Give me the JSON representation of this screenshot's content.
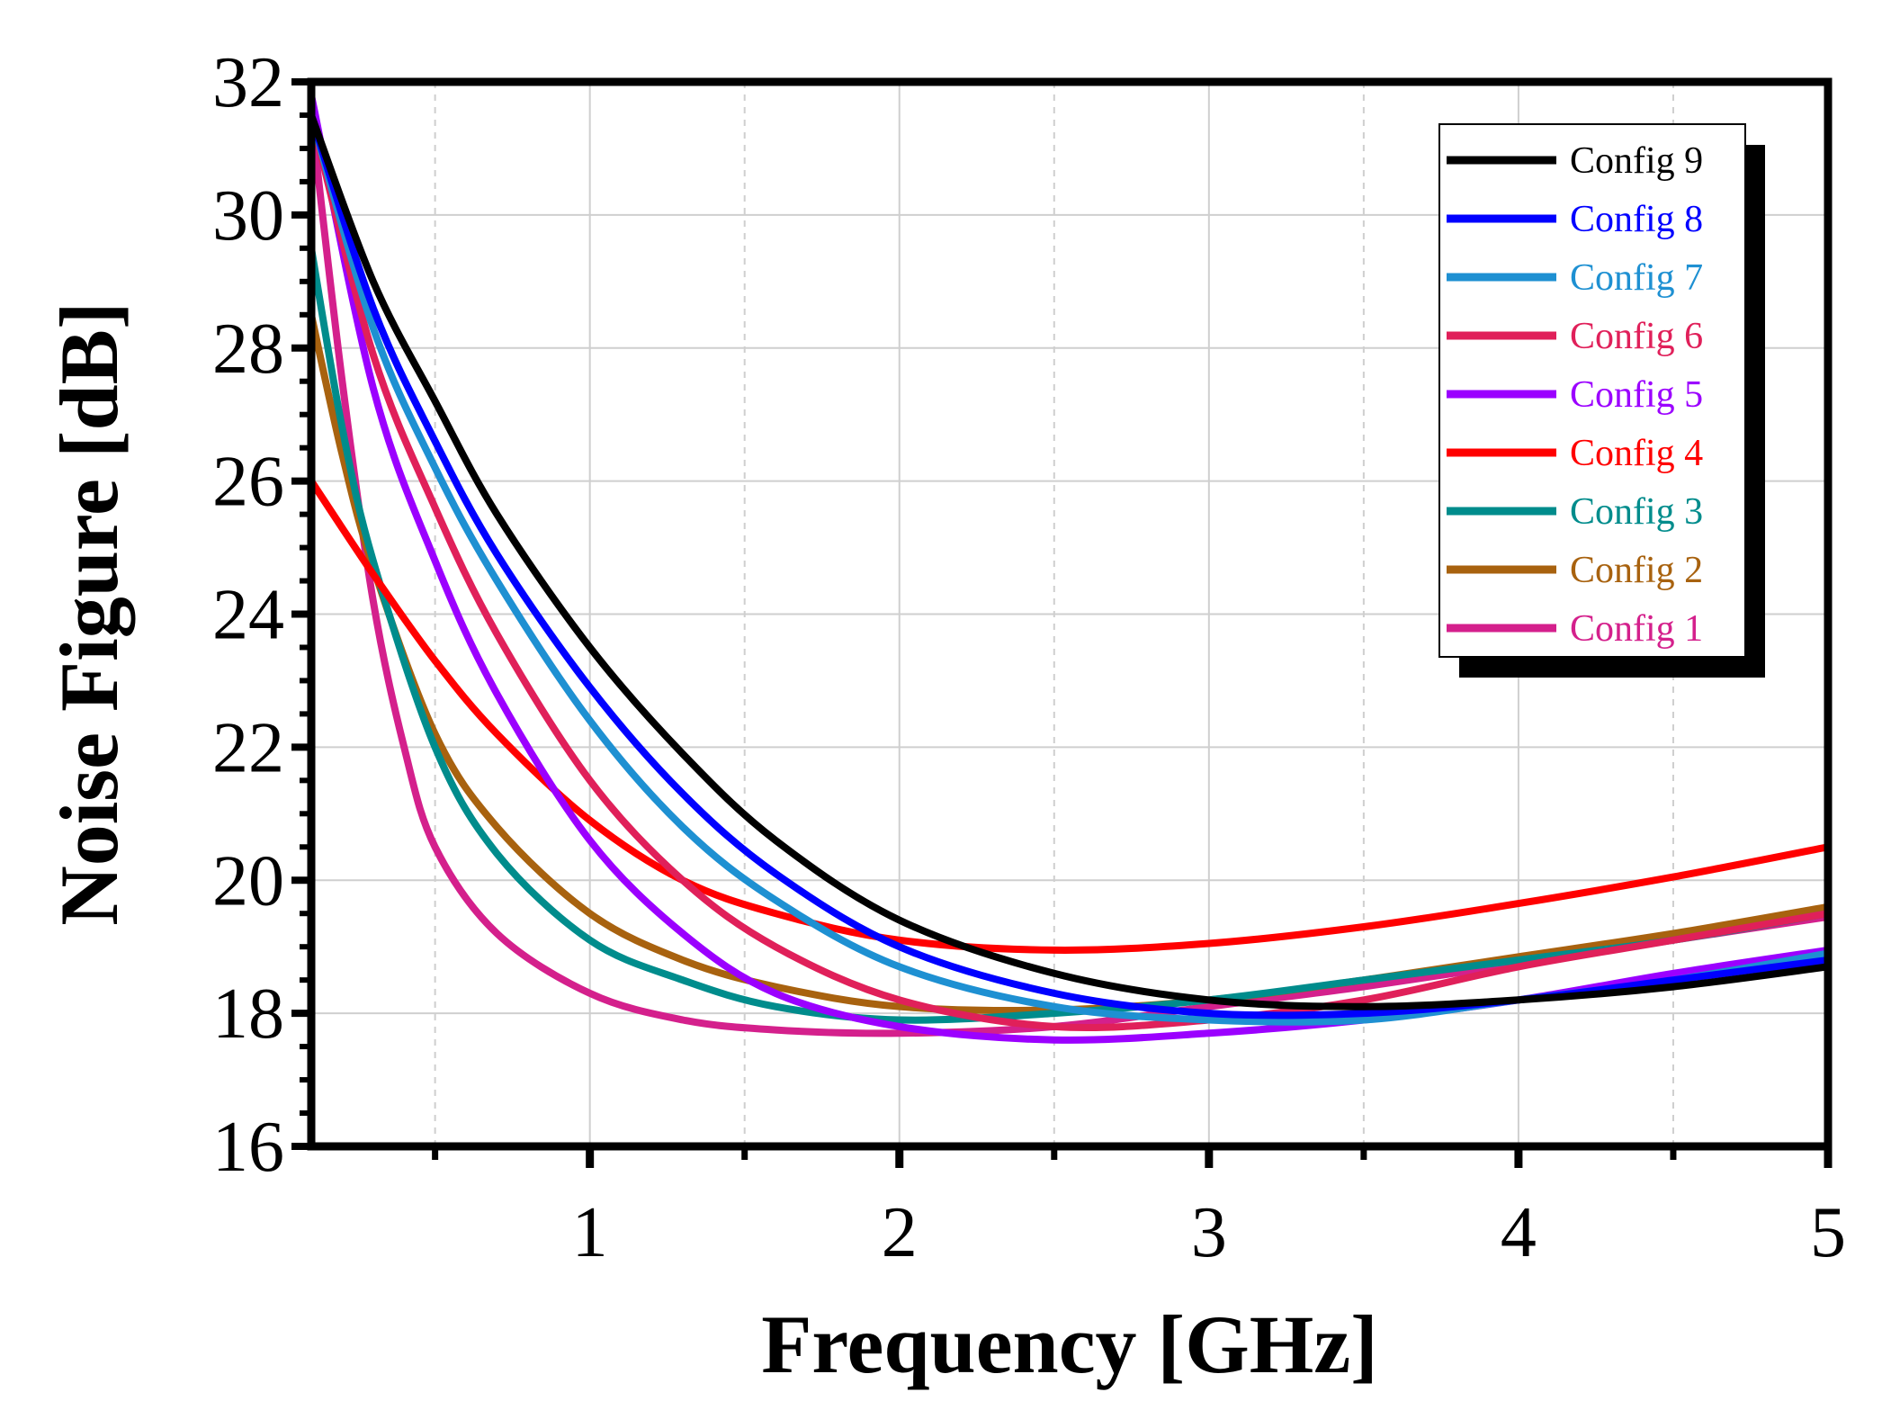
{
  "chart_data": {
    "type": "line",
    "title": "",
    "xlabel": "Frequency [GHz]",
    "ylabel": "Noise Figure [dB]",
    "xlim": [
      0.1,
      5
    ],
    "ylim": [
      16,
      32
    ],
    "x_ticks": [
      1,
      2,
      3,
      4,
      5
    ],
    "x_minor_ticks": [
      0.5,
      1.5,
      2.5,
      3.5,
      4.5
    ],
    "y_ticks": [
      16,
      18,
      20,
      22,
      24,
      26,
      28,
      30,
      32
    ],
    "grid": true,
    "legend_position": "top-right",
    "series": [
      {
        "name": "Config 9",
        "color": "#000000",
        "x": [
          0.1,
          0.3,
          0.5,
          0.7,
          1.0,
          1.3,
          1.6,
          2.0,
          2.5,
          3.0,
          3.5,
          4.0,
          4.5,
          5.0
        ],
        "y": [
          31.5,
          29.0,
          27.2,
          25.5,
          23.5,
          21.9,
          20.6,
          19.4,
          18.6,
          18.2,
          18.1,
          18.2,
          18.4,
          18.7
        ]
      },
      {
        "name": "Config 8",
        "color": "#0000FF",
        "x": [
          0.1,
          0.3,
          0.5,
          0.7,
          1.0,
          1.3,
          1.6,
          2.0,
          2.5,
          3.0,
          3.5,
          4.0,
          4.5,
          5.0
        ],
        "y": [
          31.5,
          28.6,
          26.6,
          24.9,
          22.9,
          21.3,
          20.1,
          19.0,
          18.3,
          18.0,
          18.0,
          18.2,
          18.5,
          18.8
        ]
      },
      {
        "name": "Config 7",
        "color": "#1E90D2",
        "x": [
          0.1,
          0.3,
          0.5,
          0.7,
          1.0,
          1.3,
          1.6,
          2.0,
          2.5,
          3.0,
          3.5,
          4.0,
          4.5,
          5.0
        ],
        "y": [
          31.5,
          28.3,
          26.2,
          24.5,
          22.4,
          20.8,
          19.7,
          18.7,
          18.1,
          17.9,
          17.9,
          18.2,
          18.5,
          18.9
        ]
      },
      {
        "name": "Config 6",
        "color": "#E0205A",
        "x": [
          0.1,
          0.3,
          0.5,
          0.7,
          1.0,
          1.3,
          1.6,
          2.0,
          2.5,
          3.0,
          3.5,
          4.0,
          4.5,
          5.0
        ],
        "y": [
          31.5,
          27.9,
          25.6,
          23.7,
          21.5,
          20.0,
          19.0,
          18.2,
          17.8,
          17.9,
          18.2,
          18.7,
          19.1,
          19.5
        ]
      },
      {
        "name": "Config 5",
        "color": "#9B00FF",
        "x": [
          0.1,
          0.3,
          0.5,
          0.7,
          1.0,
          1.3,
          1.6,
          2.0,
          2.5,
          3.0,
          3.5,
          4.0,
          4.5,
          5.0
        ],
        "y": [
          31.8,
          27.4,
          24.8,
          22.8,
          20.6,
          19.2,
          18.3,
          17.8,
          17.6,
          17.7,
          17.9,
          18.2,
          18.6,
          18.95
        ]
      },
      {
        "name": "Config 4",
        "color": "#FF0000",
        "x": [
          0.1,
          0.3,
          0.5,
          0.7,
          1.0,
          1.3,
          1.6,
          2.0,
          2.5,
          3.0,
          3.5,
          4.0,
          4.5,
          5.0
        ],
        "y": [
          26.0,
          24.6,
          23.3,
          22.2,
          20.9,
          20.0,
          19.5,
          19.1,
          18.95,
          19.05,
          19.3,
          19.65,
          20.05,
          20.5
        ]
      },
      {
        "name": "Config 3",
        "color": "#008C8C",
        "x": [
          0.1,
          0.2,
          0.3,
          0.5,
          0.7,
          1.0,
          1.3,
          1.6,
          2.0,
          2.5,
          3.0,
          3.5,
          4.0,
          4.5,
          5.0
        ],
        "y": [
          29.5,
          26.8,
          24.8,
          22.0,
          20.4,
          19.1,
          18.5,
          18.1,
          17.9,
          18.0,
          18.2,
          18.5,
          18.8,
          19.1,
          19.5
        ]
      },
      {
        "name": "Config 2",
        "color": "#A8620F",
        "x": [
          0.1,
          0.2,
          0.3,
          0.5,
          0.7,
          1.0,
          1.3,
          1.6,
          2.0,
          2.5,
          3.0,
          3.5,
          4.0,
          4.5,
          5.0
        ],
        "y": [
          28.5,
          26.4,
          24.7,
          22.2,
          20.8,
          19.5,
          18.8,
          18.4,
          18.1,
          18.05,
          18.2,
          18.5,
          18.85,
          19.2,
          19.6
        ]
      },
      {
        "name": "Config 1",
        "color": "#D4208C",
        "x": [
          0.1,
          0.2,
          0.3,
          0.4,
          0.5,
          0.7,
          1.0,
          1.3,
          1.6,
          2.0,
          2.5,
          3.0,
          3.5,
          4.0,
          4.5,
          5.0
        ],
        "y": [
          31.5,
          27.5,
          24.2,
          22.0,
          20.5,
          19.2,
          18.3,
          17.9,
          17.75,
          17.7,
          17.8,
          18.1,
          18.4,
          18.75,
          19.1,
          19.45
        ]
      }
    ]
  }
}
